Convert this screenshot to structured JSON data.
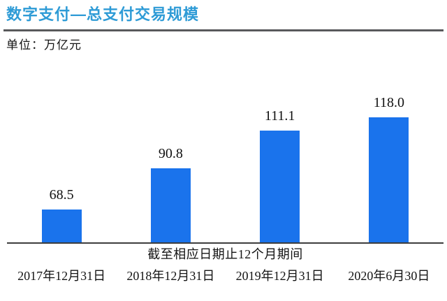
{
  "header": {
    "title": "数字支付—总支付交易规模",
    "unit_label": "单位：万亿元"
  },
  "chart_data": {
    "type": "bar",
    "title": "数字支付—总支付交易规模",
    "unit": "万亿元",
    "categories": [
      "2017年12月31日",
      "2018年12月31日",
      "2019年12月31日",
      "2020年6月30日"
    ],
    "values": [
      68.5,
      90.8,
      111.1,
      118.0
    ],
    "value_labels": [
      "68.5",
      "90.8",
      "111.1",
      "118.0"
    ],
    "xlabel": "截至相应日期止12个月期间",
    "ylabel": "",
    "ylim": [
      50,
      120
    ],
    "grid": false,
    "legend_position": "none",
    "bar_color": "#1A73EC"
  },
  "colors": {
    "title_blue": "#2E9BD6",
    "bar_blue": "#1A73EC",
    "divider_gray": "#58595B",
    "axis_gray": "#3D3D3D",
    "text_black": "#141414"
  }
}
